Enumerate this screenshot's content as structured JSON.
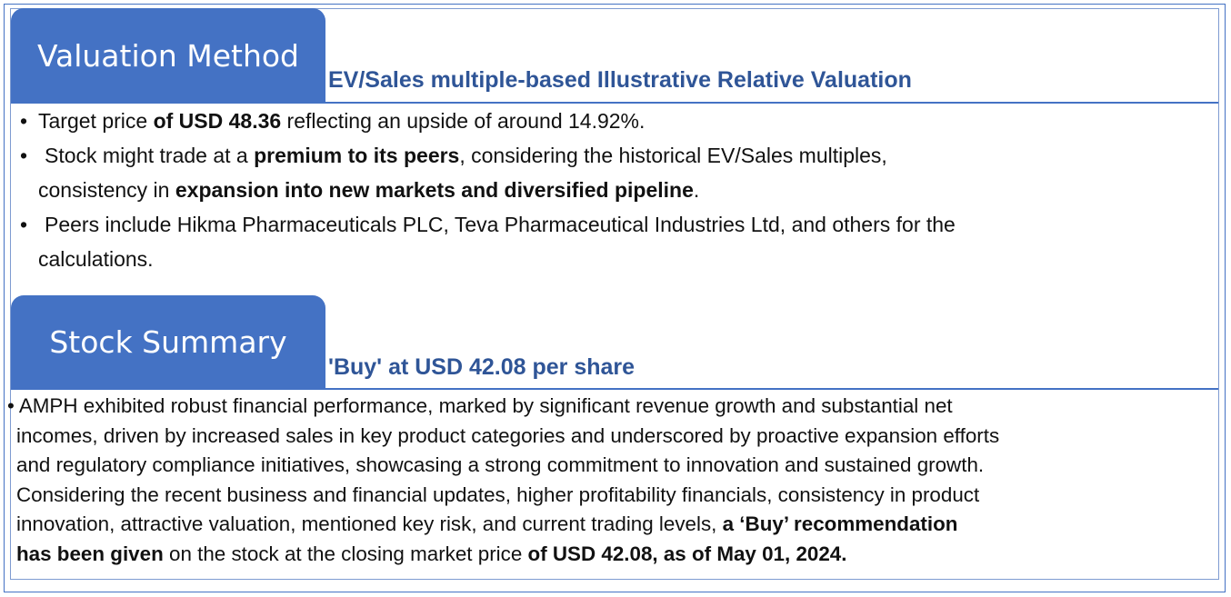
{
  "valuation": {
    "tab_title": "Valuation Method",
    "subtitle": "EV/Sales multiple-based Illustrative Relative Valuation",
    "bullet_symbol": "•",
    "bullets": [
      {
        "line1": [
          "Target price ",
          "of USD 48.36",
          " reflecting an upside of around 14.92%."
        ]
      },
      {
        "line1": [
          "Stock might trade at a ",
          "premium to its peers",
          ", considering the historical EV/Sales multiples,"
        ],
        "line2": [
          "consistency in ",
          "expansion into new markets and diversified pipeline",
          "."
        ]
      },
      {
        "line1": "Peers include Hikma Pharmaceuticals PLC, Teva Pharmaceutical Industries Ltd, and others for the",
        "line2": "calculations."
      }
    ]
  },
  "stock_summary": {
    "tab_title": "Stock Summary",
    "subtitle": "'Buy' at USD 42.08 per share",
    "bullet_symbol": "•",
    "lines": [
      "AMPH exhibited robust financial performance, marked by significant revenue growth and substantial net",
      "incomes, driven by increased sales in key product categories and underscored by proactive expansion efforts",
      "and regulatory compliance initiatives, showcasing a strong commitment to innovation and sustained growth.",
      "Considering the recent business and financial updates, higher profitability financials, consistency in product"
    ],
    "line5": [
      "innovation, attractive valuation, mentioned key risk, and current trading levels, ",
      "a ‘Buy’ recommendation"
    ],
    "line6": [
      "has been given",
      " on the stock at the closing market price ",
      "of USD 42.08, as of May 01, 2024."
    ]
  },
  "colors": {
    "accent": "#4472c4",
    "subtitle": "#2f5597",
    "text": "#111111"
  }
}
